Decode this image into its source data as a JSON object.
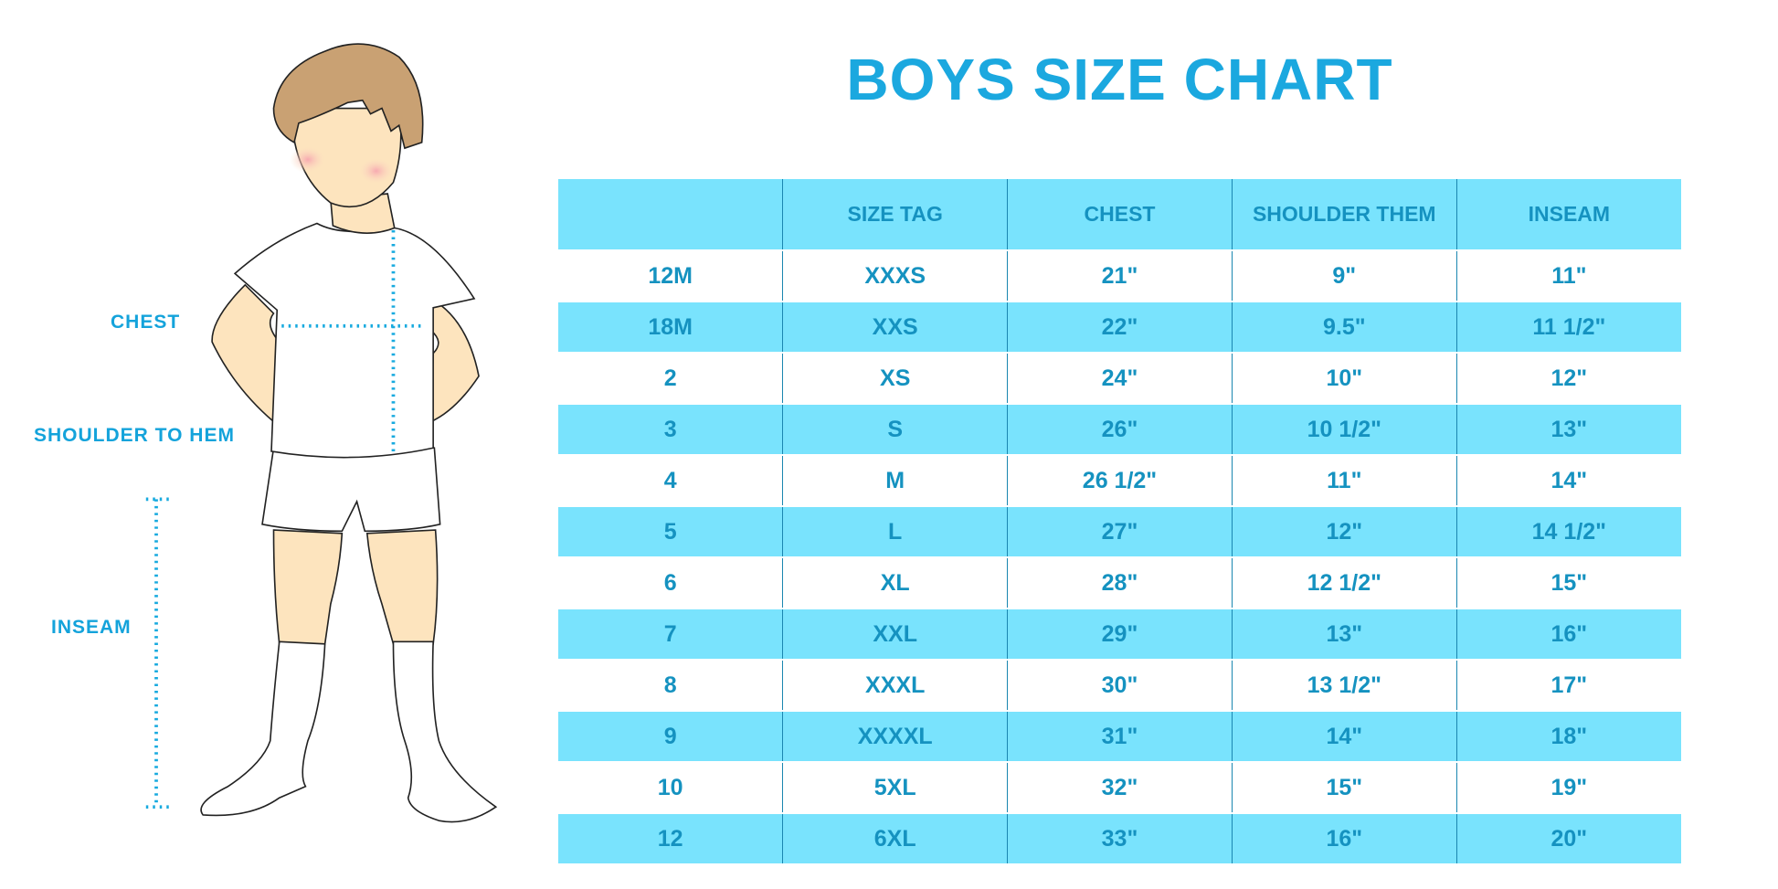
{
  "title": "BOYS SIZE CHART",
  "colors": {
    "accent": "#1ba8df",
    "stripe": "#79e3fd",
    "text": "#1592c0"
  },
  "figure_labels": {
    "chest": "CHEST",
    "shoulder_to_hem": "SHOULDER TO HEM",
    "inseam": "INSEAM"
  },
  "table": {
    "headers": [
      "",
      "SIZE TAG",
      "CHEST",
      "SHOULDER THEM",
      "INSEAM"
    ],
    "rows": [
      [
        "12M",
        "XXXS",
        "21\"",
        "9\"",
        "11\""
      ],
      [
        "18M",
        "XXS",
        "22\"",
        "9.5\"",
        "11 1/2\""
      ],
      [
        "2",
        "XS",
        "24\"",
        "10\"",
        "12\""
      ],
      [
        "3",
        "S",
        "26\"",
        "10 1/2\"",
        "13\""
      ],
      [
        "4",
        "M",
        "26 1/2\"",
        "11\"",
        "14\""
      ],
      [
        "5",
        "L",
        "27\"",
        "12\"",
        "14 1/2\""
      ],
      [
        "6",
        "XL",
        "28\"",
        "12 1/2\"",
        "15\""
      ],
      [
        "7",
        "XXL",
        "29\"",
        "13\"",
        "16\""
      ],
      [
        "8",
        "XXXL",
        "30\"",
        "13 1/2\"",
        "17\""
      ],
      [
        "9",
        "XXXXL",
        "31\"",
        "14\"",
        "18\""
      ],
      [
        "10",
        "5XL",
        "32\"",
        "15\"",
        "19\""
      ],
      [
        "12",
        "6XL",
        "33\"",
        "16\"",
        "20\""
      ]
    ]
  }
}
